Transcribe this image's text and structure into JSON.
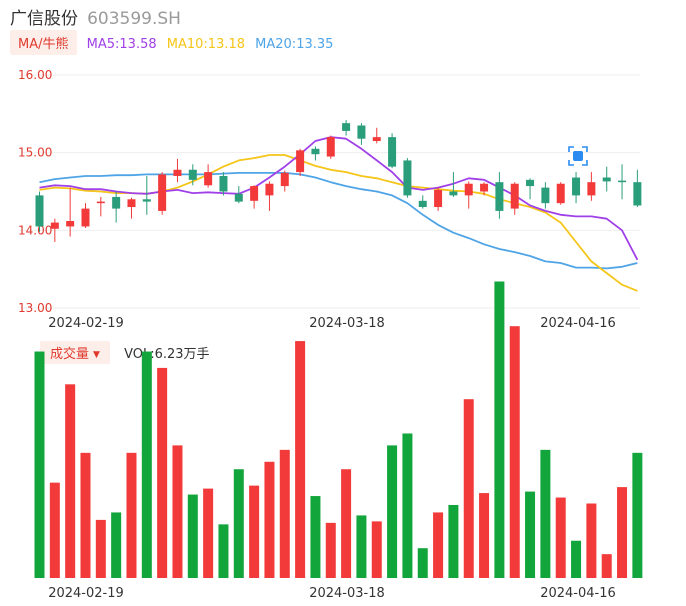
{
  "header": {
    "name": "广信股份",
    "code": "603599.SH"
  },
  "ma_bar": {
    "toggle_label": "MA/牛熊",
    "ma5": "MA5:13.58",
    "ma10": "MA10:13.18",
    "ma20": "MA20:13.35"
  },
  "volume_bar": {
    "toggle_label": "成交量",
    "vol_text": "VOL:6.23万手"
  },
  "colors": {
    "up": "#f23a3a",
    "down": "#12a53b",
    "down_candle": "#2a9d7a",
    "ma5": "#a040e8",
    "ma10": "#f5c518",
    "ma20": "#4ea4e6",
    "axis_label": "#e03a2f"
  },
  "chart_data": [
    {
      "type": "candlestick",
      "y_ticks": [
        "16.00",
        "15.00",
        "14.00",
        "13.00"
      ],
      "ylim": [
        13.0,
        16.0
      ],
      "x_labels": [
        "2024-02-19",
        "2024-03-18",
        "2024-04-16"
      ],
      "candles": [
        {
          "o": 14.45,
          "c": 14.05,
          "h": 14.5,
          "l": 13.98
        },
        {
          "o": 14.02,
          "c": 14.1,
          "h": 14.15,
          "l": 13.85
        },
        {
          "o": 14.05,
          "c": 14.12,
          "h": 14.55,
          "l": 13.92
        },
        {
          "o": 14.05,
          "c": 14.28,
          "h": 14.35,
          "l": 14.03
        },
        {
          "o": 14.35,
          "c": 14.37,
          "h": 14.43,
          "l": 14.18
        },
        {
          "o": 14.43,
          "c": 14.28,
          "h": 14.5,
          "l": 14.1
        },
        {
          "o": 14.3,
          "c": 14.4,
          "h": 14.42,
          "l": 14.15
        },
        {
          "o": 14.4,
          "c": 14.37,
          "h": 14.7,
          "l": 14.2
        },
        {
          "o": 14.25,
          "c": 14.72,
          "h": 14.75,
          "l": 14.2
        },
        {
          "o": 14.7,
          "c": 14.78,
          "h": 14.92,
          "l": 14.62
        },
        {
          "o": 14.78,
          "c": 14.65,
          "h": 14.85,
          "l": 14.58
        },
        {
          "o": 14.58,
          "c": 14.75,
          "h": 14.85,
          "l": 14.55
        },
        {
          "o": 14.7,
          "c": 14.5,
          "h": 14.75,
          "l": 14.45
        },
        {
          "o": 14.47,
          "c": 14.37,
          "h": 14.57,
          "l": 14.35
        },
        {
          "o": 14.38,
          "c": 14.57,
          "h": 14.58,
          "l": 14.28
        },
        {
          "o": 14.45,
          "c": 14.6,
          "h": 14.63,
          "l": 14.25
        },
        {
          "o": 14.57,
          "c": 14.74,
          "h": 14.77,
          "l": 14.5
        },
        {
          "o": 14.75,
          "c": 15.03,
          "h": 15.05,
          "l": 14.7
        },
        {
          "o": 15.05,
          "c": 14.98,
          "h": 15.08,
          "l": 14.9
        },
        {
          "o": 14.95,
          "c": 15.2,
          "h": 15.22,
          "l": 14.92
        },
        {
          "o": 15.38,
          "c": 15.28,
          "h": 15.42,
          "l": 15.22
        },
        {
          "o": 15.35,
          "c": 15.18,
          "h": 15.38,
          "l": 15.1
        },
        {
          "o": 15.15,
          "c": 15.2,
          "h": 15.32,
          "l": 15.12
        },
        {
          "o": 15.2,
          "c": 14.82,
          "h": 15.25,
          "l": 14.8
        },
        {
          "o": 14.9,
          "c": 14.45,
          "h": 14.93,
          "l": 14.42
        },
        {
          "o": 14.38,
          "c": 14.3,
          "h": 14.45,
          "l": 14.28
        },
        {
          "o": 14.3,
          "c": 14.52,
          "h": 14.55,
          "l": 14.25
        },
        {
          "o": 14.5,
          "c": 14.45,
          "h": 14.75,
          "l": 14.43
        },
        {
          "o": 14.45,
          "c": 14.6,
          "h": 14.63,
          "l": 14.28
        },
        {
          "o": 14.5,
          "c": 14.6,
          "h": 14.62,
          "l": 14.45
        },
        {
          "o": 14.62,
          "c": 14.25,
          "h": 14.75,
          "l": 14.15
        },
        {
          "o": 14.28,
          "c": 14.6,
          "h": 14.62,
          "l": 14.2
        },
        {
          "o": 14.65,
          "c": 14.57,
          "h": 14.67,
          "l": 14.4
        },
        {
          "o": 14.55,
          "c": 14.35,
          "h": 14.62,
          "l": 14.28
        },
        {
          "o": 14.35,
          "c": 14.6,
          "h": 14.62,
          "l": 14.33
        },
        {
          "o": 14.68,
          "c": 14.45,
          "h": 14.75,
          "l": 14.35
        },
        {
          "o": 14.45,
          "c": 14.62,
          "h": 14.75,
          "l": 14.38
        },
        {
          "o": 14.68,
          "c": 14.63,
          "h": 14.82,
          "l": 14.5
        },
        {
          "o": 14.64,
          "c": 14.62,
          "h": 14.85,
          "l": 14.4
        },
        {
          "o": 14.62,
          "c": 14.32,
          "h": 14.78,
          "l": 14.3
        }
      ],
      "ma5": [
        14.55,
        14.58,
        14.57,
        14.53,
        14.53,
        14.5,
        14.48,
        14.47,
        14.5,
        14.52,
        14.48,
        14.49,
        14.48,
        14.47,
        14.55,
        14.68,
        14.82,
        14.98,
        15.15,
        15.2,
        15.18,
        15.05,
        14.9,
        14.75,
        14.55,
        14.52,
        14.55,
        14.6,
        14.67,
        14.65,
        14.55,
        14.45,
        14.32,
        14.25,
        14.2,
        14.18,
        14.18,
        14.15,
        14.0,
        13.62
      ],
      "ma10": [
        14.52,
        14.55,
        14.54,
        14.51,
        14.5,
        14.48,
        14.48,
        14.47,
        14.5,
        14.55,
        14.63,
        14.72,
        14.82,
        14.9,
        14.93,
        14.97,
        14.97,
        14.9,
        14.83,
        14.78,
        14.75,
        14.7,
        14.67,
        14.62,
        14.57,
        14.55,
        14.53,
        14.51,
        14.5,
        14.47,
        14.4,
        14.35,
        14.3,
        14.23,
        14.1,
        13.85,
        13.6,
        13.45,
        13.3,
        13.22
      ],
      "ma20": [
        14.62,
        14.66,
        14.68,
        14.7,
        14.7,
        14.71,
        14.71,
        14.72,
        14.72,
        14.72,
        14.72,
        14.72,
        14.73,
        14.74,
        14.74,
        14.74,
        14.74,
        14.72,
        14.68,
        14.62,
        14.57,
        14.53,
        14.5,
        14.45,
        14.35,
        14.2,
        14.07,
        13.97,
        13.9,
        13.82,
        13.76,
        13.72,
        13.67,
        13.6,
        13.58,
        13.52,
        13.52,
        13.51,
        13.53,
        13.58
      ]
    },
    {
      "type": "bar",
      "title": "成交量",
      "x_labels": [
        "2024-02-19",
        "2024-03-18",
        "2024-04-16"
      ],
      "values": [
        7.6,
        3.2,
        6.5,
        4.2,
        1.95,
        2.2,
        4.2,
        7.6,
        7.05,
        4.45,
        2.8,
        3.0,
        1.8,
        3.65,
        3.1,
        3.9,
        4.3,
        7.95,
        2.75,
        1.85,
        3.65,
        2.1,
        1.9,
        4.45,
        4.85,
        1.0,
        2.2,
        2.45,
        6.0,
        2.85,
        9.95,
        8.45,
        2.9,
        4.3,
        2.7,
        1.25,
        2.5,
        0.8,
        3.05,
        4.2
      ],
      "up": [
        false,
        true,
        true,
        true,
        true,
        false,
        true,
        false,
        true,
        true,
        false,
        true,
        false,
        false,
        true,
        true,
        true,
        true,
        false,
        true,
        true,
        false,
        true,
        false,
        false,
        false,
        true,
        false,
        true,
        true,
        false,
        true,
        false,
        false,
        true,
        false,
        true,
        true,
        true,
        false
      ],
      "ylim": [
        0,
        10
      ]
    }
  ]
}
